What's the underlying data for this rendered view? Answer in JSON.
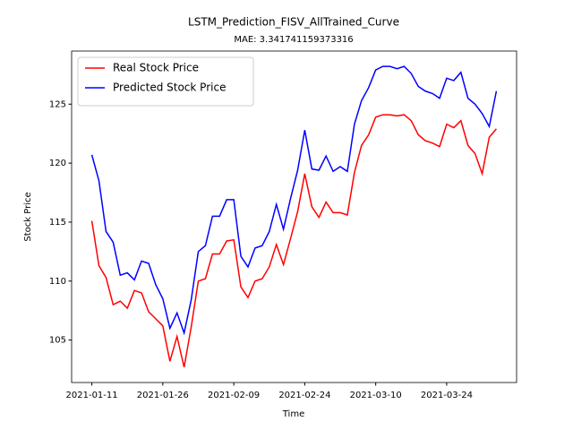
{
  "chart_data": {
    "type": "line",
    "title": "LSTM_Prediction_FISV_AllTrained_Curve",
    "subtitle": "MAE: 3.341741159373316",
    "x_label": "Time",
    "y_label": "Stock Price",
    "categories": [
      "2021-01-11",
      null,
      null,
      null,
      null,
      null,
      null,
      null,
      null,
      null,
      "2021-01-26",
      null,
      null,
      null,
      null,
      null,
      null,
      null,
      null,
      null,
      "2021-02-09",
      null,
      null,
      null,
      null,
      null,
      null,
      null,
      null,
      null,
      "2021-02-24",
      null,
      null,
      null,
      null,
      null,
      null,
      null,
      null,
      null,
      "2021-03-10",
      null,
      null,
      null,
      null,
      null,
      null,
      null,
      null,
      null,
      "2021-03-24",
      null,
      null,
      null,
      null,
      null,
      null,
      null
    ],
    "series": [
      {
        "name": "Real Stock Price",
        "color": "#ff0000",
        "values": [
          115.1,
          111.3,
          110.3,
          108.0,
          108.3,
          107.7,
          109.2,
          109.0,
          107.4,
          106.8,
          106.2,
          103.2,
          105.3,
          102.7,
          106.1,
          110.0,
          110.2,
          112.3,
          112.3,
          113.4,
          113.5,
          109.5,
          108.6,
          110.0,
          110.2,
          111.2,
          113.1,
          111.4,
          113.6,
          115.9,
          119.1,
          116.3,
          115.4,
          116.7,
          115.8,
          115.8,
          115.6,
          119.2,
          121.5,
          122.4,
          123.9,
          124.1,
          124.1,
          124.0,
          124.1,
          123.6,
          122.4,
          121.9,
          121.7,
          121.4,
          123.3,
          123.0,
          123.6,
          121.5,
          120.8,
          119.1,
          122.2,
          122.9
        ]
      },
      {
        "name": "Predicted Stock Price",
        "color": "#0000ff",
        "values": [
          120.7,
          118.5,
          114.2,
          113.3,
          110.5,
          110.7,
          110.1,
          111.7,
          111.5,
          109.7,
          108.5,
          106.0,
          107.3,
          105.6,
          108.4,
          112.5,
          113.0,
          115.5,
          115.5,
          116.9,
          116.9,
          112.1,
          111.2,
          112.8,
          113.0,
          114.2,
          116.5,
          114.4,
          117.0,
          119.4,
          122.8,
          119.5,
          119.4,
          120.6,
          119.3,
          119.7,
          119.3,
          123.3,
          125.3,
          126.4,
          127.9,
          128.2,
          128.2,
          128.0,
          128.2,
          127.6,
          126.5,
          126.1,
          125.9,
          125.5,
          127.2,
          127.0,
          127.7,
          125.5,
          125.0,
          124.2,
          123.1,
          126.1
        ]
      }
    ],
    "ylim": [
      101.4,
      129.5
    ],
    "yticks": [
      105,
      110,
      115,
      120,
      125
    ],
    "legend": "upper left",
    "grid": false
  }
}
